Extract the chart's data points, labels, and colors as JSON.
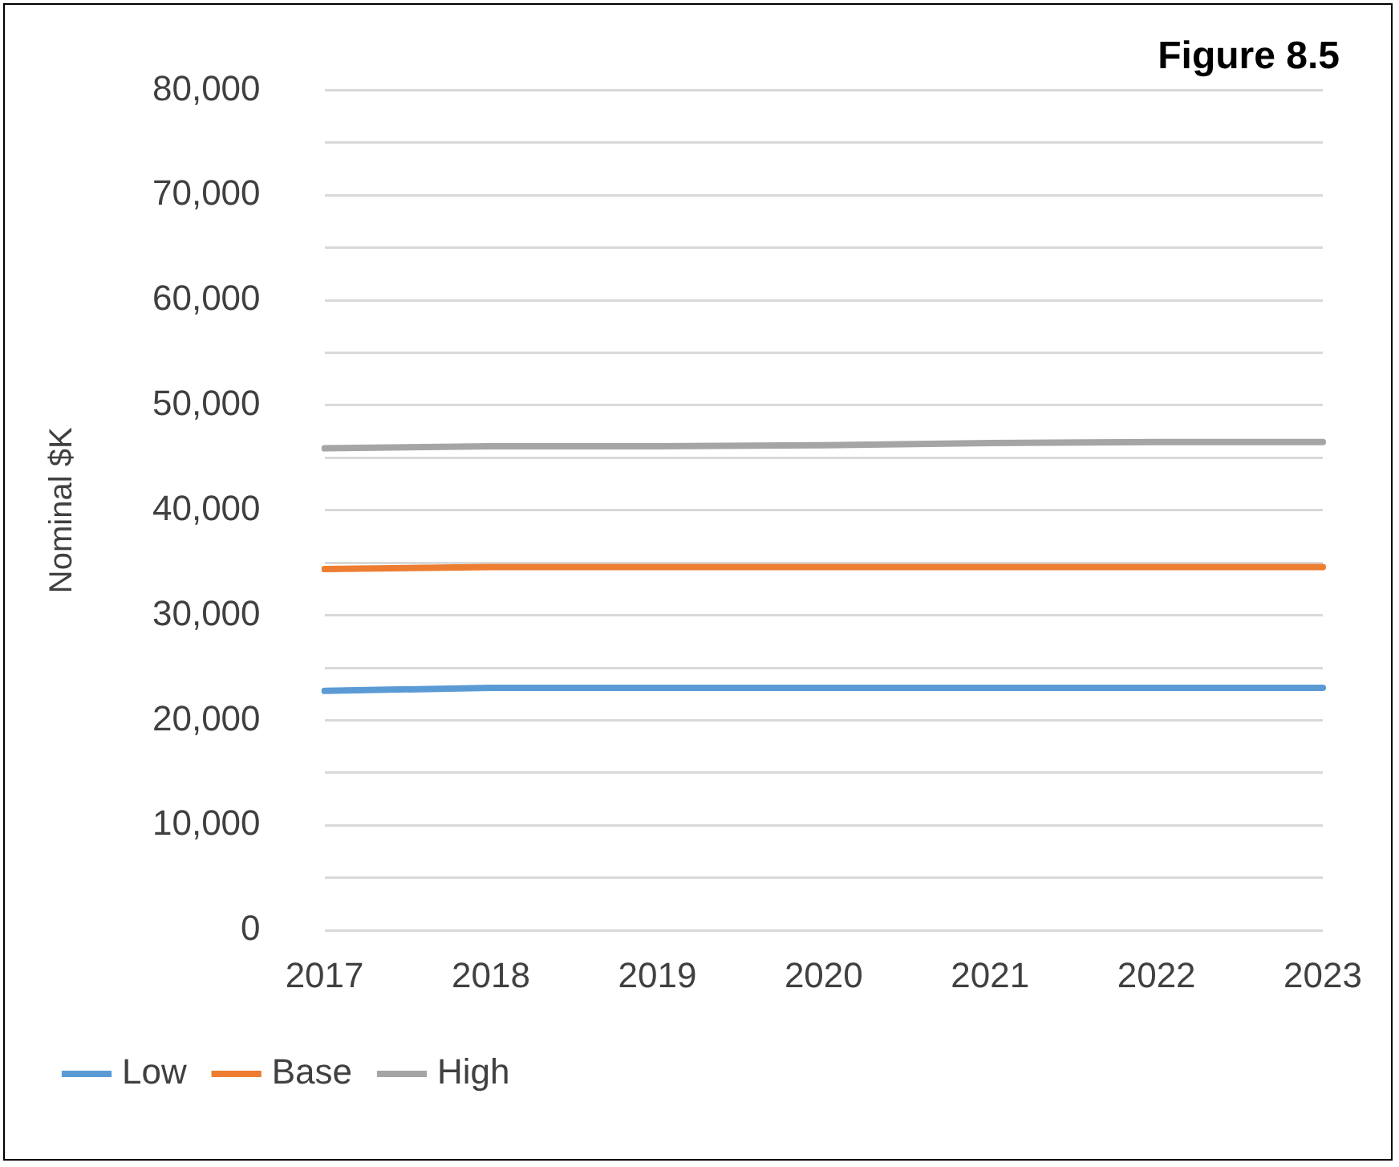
{
  "chart_data": {
    "type": "line",
    "title": "Figure 8.5",
    "ylabel": "Nominal $K",
    "categories": [
      "2017",
      "2018",
      "2019",
      "2020",
      "2021",
      "2022",
      "2023"
    ],
    "series": [
      {
        "name": "Low",
        "color": "#5b9bd5",
        "values": [
          22800,
          23100,
          23100,
          23100,
          23100,
          23100,
          23100
        ]
      },
      {
        "name": "Base",
        "color": "#ed7d31",
        "values": [
          34400,
          34600,
          34600,
          34600,
          34600,
          34600,
          34600
        ]
      },
      {
        "name": "High",
        "color": "#a5a5a5",
        "values": [
          45900,
          46100,
          46100,
          46200,
          46400,
          46500,
          46500
        ]
      }
    ],
    "ylim": [
      0,
      80000
    ],
    "yticks": [
      0,
      {
        "value": 5000,
        "label": null
      },
      {
        "value": 10000,
        "label": "10,000"
      },
      {
        "value": 15000,
        "label": null
      },
      {
        "value": 20000,
        "label": "20,000"
      },
      {
        "value": 25000,
        "label": null
      },
      {
        "value": 30000,
        "label": "30,000"
      },
      {
        "value": 35000,
        "label": null
      },
      {
        "value": 40000,
        "label": "40,000"
      },
      {
        "value": 45000,
        "label": null
      },
      {
        "value": 50000,
        "label": "50,000"
      },
      {
        "value": 55000,
        "label": null
      },
      {
        "value": 60000,
        "label": "60,000"
      },
      {
        "value": 65000,
        "label": null
      },
      {
        "value": 70000,
        "label": "70,000"
      },
      {
        "value": 75000,
        "label": null
      },
      {
        "value": 80000,
        "label": "80,000"
      }
    ],
    "grid": "y",
    "legend": "bottom",
    "marker": "none",
    "line_style": "solid"
  }
}
